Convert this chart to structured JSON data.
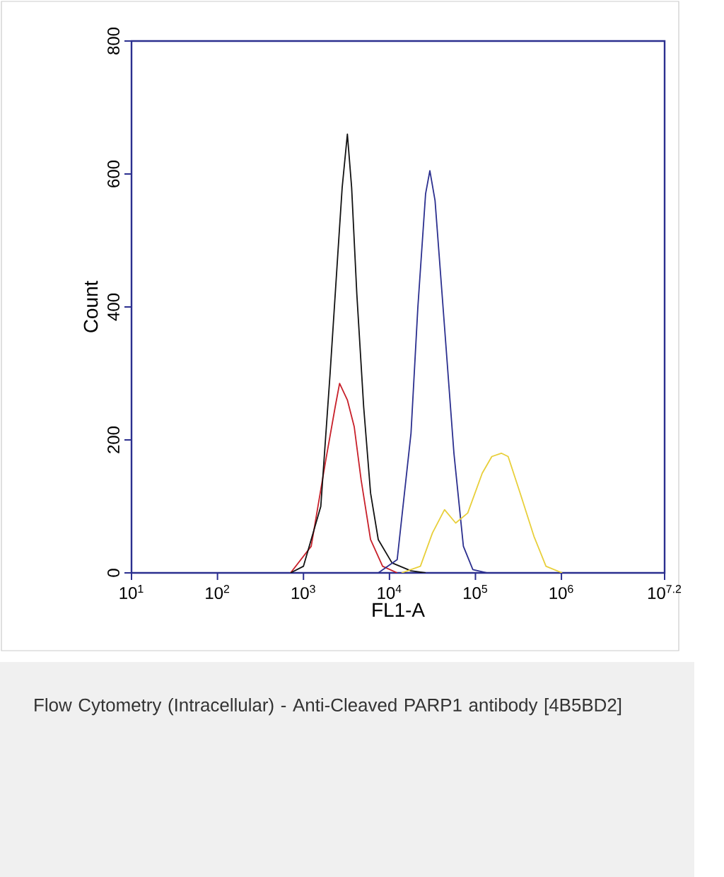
{
  "chart_data": {
    "type": "line",
    "xlabel": "FL1-A",
    "ylabel": "Count",
    "log": "x",
    "xlim": [
      10,
      15848932
    ],
    "ylim": [
      0,
      800
    ],
    "xticks": [
      {
        "value": 10,
        "label": "10$^{1}$"
      },
      {
        "value": 100,
        "label": "10$^{2}$"
      },
      {
        "value": 1000,
        "label": "10$^{3}$"
      },
      {
        "value": 10000,
        "label": "10$^{4}$"
      },
      {
        "value": 100000,
        "label": "10$^{5}$"
      },
      {
        "value": 1000000,
        "label": "10$^{6}$"
      },
      {
        "value": 15848932,
        "label": "10$^{7.2}$"
      }
    ],
    "yticks": [
      0,
      200,
      400,
      600,
      800
    ],
    "series": [
      {
        "color": "#c8202a",
        "x": [
          708,
          1230,
          1820,
          2340,
          2630,
          3240,
          3890,
          4680,
          6030,
          8320,
          12300
        ],
        "values": [
          0,
          40,
          170,
          250,
          285,
          260,
          220,
          140,
          50,
          10,
          0
        ]
      },
      {
        "color": "#111111",
        "x": [
          708,
          1000,
          1590,
          2040,
          2510,
          2820,
          3240,
          3630,
          4170,
          5010,
          6030,
          7410,
          10700,
          17800,
          26300
        ],
        "values": [
          0,
          10,
          100,
          300,
          480,
          580,
          660,
          580,
          420,
          250,
          120,
          50,
          15,
          3,
          0
        ]
      },
      {
        "color": "#2b2f8f",
        "x": [
          7410,
          12300,
          17800,
          21400,
          26300,
          29500,
          33900,
          43700,
          56200,
          72400,
          93300,
          135000
        ],
        "values": [
          0,
          20,
          210,
          400,
          570,
          605,
          560,
          370,
          180,
          40,
          5,
          0
        ]
      },
      {
        "color": "#e8cf3a",
        "x": [
          13800,
          22900,
          31600,
          43700,
          58900,
          81300,
          120000,
          155000,
          200000,
          240000,
          331000,
          479000,
          661000,
          1020000
        ],
        "values": [
          0,
          10,
          60,
          95,
          75,
          90,
          150,
          175,
          180,
          175,
          120,
          55,
          10,
          0
        ]
      }
    ],
    "annotations": [
      "Flow Cytometry (Intracellular) - Anti-Cleaved PARP1 antibody [4B5BD2]"
    ]
  }
}
